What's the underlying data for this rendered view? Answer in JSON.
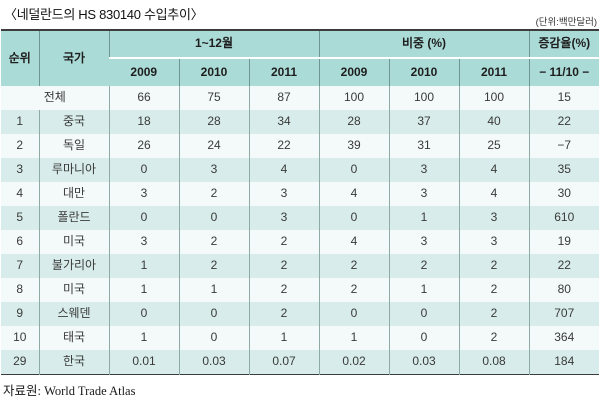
{
  "page": {
    "title": "〈네덜란드의 HS 830140 수입추이〉",
    "unit_note": "(단위:백만달러)",
    "source": "자료원: World Trade Atlas"
  },
  "colors": {
    "header_bg": "#abdbd7",
    "row_stripe": "#d8edeb",
    "row_plain": "#f3faf9",
    "border_dark": "#3c3c3c",
    "grid_line": "#8fa9a7"
  },
  "table": {
    "headers": {
      "rank": "순위",
      "country": "국가",
      "group_period": "1~12월",
      "group_share": "비중 (%)",
      "group_change": "증감율(%)",
      "years": [
        "2009",
        "2010",
        "2011"
      ],
      "change_sub": "− 11/10 −"
    },
    "rows": [
      {
        "rank": "",
        "country": "전체",
        "merged": true,
        "values": [
          "66",
          "75",
          "87",
          "100",
          "100",
          "100",
          "15"
        ]
      },
      {
        "rank": "1",
        "country": "중국",
        "values": [
          "18",
          "28",
          "34",
          "28",
          "37",
          "40",
          "22"
        ]
      },
      {
        "rank": "2",
        "country": "독일",
        "values": [
          "26",
          "24",
          "22",
          "39",
          "31",
          "25",
          "−7"
        ]
      },
      {
        "rank": "3",
        "country": "루마니아",
        "values": [
          "0",
          "3",
          "4",
          "0",
          "3",
          "4",
          "35"
        ]
      },
      {
        "rank": "4",
        "country": "대만",
        "values": [
          "3",
          "2",
          "3",
          "4",
          "3",
          "4",
          "30"
        ]
      },
      {
        "rank": "5",
        "country": "폴란드",
        "values": [
          "0",
          "0",
          "3",
          "0",
          "1",
          "3",
          "610"
        ]
      },
      {
        "rank": "6",
        "country": "미국",
        "values": [
          "3",
          "2",
          "2",
          "4",
          "3",
          "3",
          "19"
        ]
      },
      {
        "rank": "7",
        "country": "불가리아",
        "values": [
          "1",
          "2",
          "2",
          "2",
          "2",
          "2",
          "22"
        ]
      },
      {
        "rank": "8",
        "country": "미국",
        "values": [
          "1",
          "1",
          "2",
          "2",
          "1",
          "2",
          "80"
        ]
      },
      {
        "rank": "9",
        "country": "스웨덴",
        "values": [
          "0",
          "0",
          "2",
          "0",
          "0",
          "2",
          "707"
        ]
      },
      {
        "rank": "10",
        "country": "태국",
        "values": [
          "1",
          "0",
          "1",
          "1",
          "0",
          "2",
          "364"
        ]
      },
      {
        "rank": "29",
        "country": "한국",
        "values": [
          "0.01",
          "0.03",
          "0.07",
          "0.02",
          "0.03",
          "0.08",
          "184"
        ]
      }
    ]
  }
}
